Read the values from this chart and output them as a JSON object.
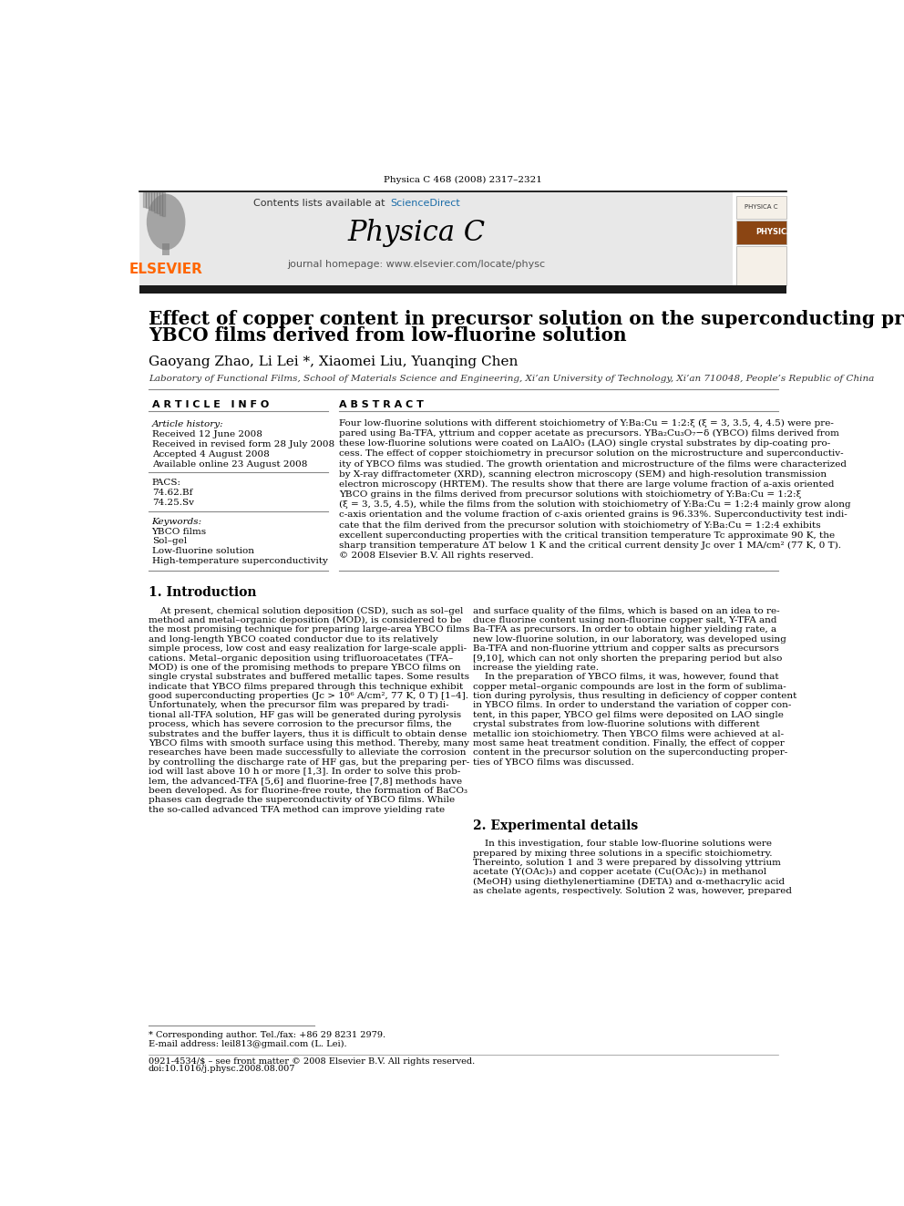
{
  "journal_info": "Physica C 468 (2008) 2317–2321",
  "contents_text": "Contents lists available at ",
  "sciencedirect_text": "ScienceDirect",
  "journal_name": "Physica C",
  "journal_homepage": "journal homepage: www.elsevier.com/locate/physc",
  "elsevier_color": "#FF6600",
  "sciencedirect_color": "#1a6ca8",
  "header_bg": "#e8e8e8",
  "black_bar_color": "#1a1a1a",
  "title_line1": "Effect of copper content in precursor solution on the superconducting properties of",
  "title_line2": "YBCO films derived from low-fluorine solution",
  "authors": "Gaoyang Zhao, Li Lei *, Xiaomei Liu, Yuanqing Chen",
  "affiliation": "Laboratory of Functional Films, School of Materials Science and Engineering, Xi’an University of Technology, Xi’an 710048, People’s Republic of China",
  "article_info_header": "A R T I C L E   I N F O",
  "abstract_header": "A B S T R A C T",
  "article_history_label": "Article history:",
  "received": "Received 12 June 2008",
  "received_revised": "Received in revised form 28 July 2008",
  "accepted": "Accepted 4 August 2008",
  "available": "Available online 23 August 2008",
  "pacs_label": "PACS:",
  "pacs1": "74.62.Bf",
  "pacs2": "74.25.Sv",
  "keywords_label": "Keywords:",
  "kw1": "YBCO films",
  "kw2": "Sol–gel",
  "kw3": "Low-fluorine solution",
  "kw4": "High-temperature superconductivity",
  "abstract_lines": [
    "Four low-fluorine solutions with different stoichiometry of Y:Ba:Cu = 1:2:ξ (ξ = 3, 3.5, 4, 4.5) were pre-",
    "pared using Ba-TFA, yttrium and copper acetate as precursors. YBa₂Cu₃O₇−δ (YBCO) films derived from",
    "these low-fluorine solutions were coated on LaAlO₃ (LAO) single crystal substrates by dip-coating pro-",
    "cess. The effect of copper stoichiometry in precursor solution on the microstructure and superconductiv-",
    "ity of YBCO films was studied. The growth orientation and microstructure of the films were characterized",
    "by X-ray diffractometer (XRD), scanning electron microscopy (SEM) and high-resolution transmission",
    "electron microscopy (HRTEM). The results show that there are large volume fraction of a-axis oriented",
    "YBCO grains in the films derived from precursor solutions with stoichiometry of Y:Ba:Cu = 1:2:ξ",
    "(ξ = 3, 3.5, 4.5), while the films from the solution with stoichiometry of Y:Ba:Cu = 1:2:4 mainly grow along",
    "c-axis orientation and the volume fraction of c-axis oriented grains is 96.33%. Superconductivity test indi-",
    "cate that the film derived from the precursor solution with stoichiometry of Y:Ba:Cu = 1:2:4 exhibits",
    "excellent superconducting properties with the critical transition temperature Tc approximate 90 K, the",
    "sharp transition temperature ΔT below 1 K and the critical current density Jc over 1 MA/cm² (77 K, 0 T).",
    "© 2008 Elsevier B.V. All rights reserved."
  ],
  "section1_title": "1. Introduction",
  "intro_col1_lines": [
    "    At present, chemical solution deposition (CSD), such as sol–gel",
    "method and metal–organic deposition (MOD), is considered to be",
    "the most promising technique for preparing large-area YBCO films",
    "and long-length YBCO coated conductor due to its relatively",
    "simple process, low cost and easy realization for large-scale appli-",
    "cations. Metal–organic deposition using trifluoroacetates (TFA–",
    "MOD) is one of the promising methods to prepare YBCO films on",
    "single crystal substrates and buffered metallic tapes. Some results",
    "indicate that YBCO films prepared through this technique exhibit",
    "good superconducting properties (Jc > 10⁶ A/cm², 77 K, 0 T) [1–4].",
    "Unfortunately, when the precursor film was prepared by tradi-",
    "tional all-TFA solution, HF gas will be generated during pyrolysis",
    "process, which has severe corrosion to the precursor films, the",
    "substrates and the buffer layers, thus it is difficult to obtain dense",
    "YBCO films with smooth surface using this method. Thereby, many",
    "researches have been made successfully to alleviate the corrosion",
    "by controlling the discharge rate of HF gas, but the preparing per-",
    "iod will last above 10 h or more [1,3]. In order to solve this prob-",
    "lem, the advanced-TFA [5,6] and fluorine-free [7,8] methods have",
    "been developed. As for fluorine-free route, the formation of BaCO₃",
    "phases can degrade the superconductivity of YBCO films. While",
    "the so-called advanced TFA method can improve yielding rate"
  ],
  "intro_col2_lines": [
    "and surface quality of the films, which is based on an idea to re-",
    "duce fluorine content using non-fluorine copper salt, Y-TFA and",
    "Ba-TFA as precursors. In order to obtain higher yielding rate, a",
    "new low-fluorine solution, in our laboratory, was developed using",
    "Ba-TFA and non-fluorine yttrium and copper salts as precursors",
    "[9,10], which can not only shorten the preparing period but also",
    "increase the yielding rate.",
    "    In the preparation of YBCO films, it was, however, found that",
    "copper metal–organic compounds are lost in the form of sublima-",
    "tion during pyrolysis, thus resulting in deficiency of copper content",
    "in YBCO films. In order to understand the variation of copper con-",
    "tent, in this paper, YBCO gel films were deposited on LAO single",
    "crystal substrates from low-fluorine solutions with different",
    "metallic ion stoichiometry. Then YBCO films were achieved at al-",
    "most same heat treatment condition. Finally, the effect of copper",
    "content in the precursor solution on the superconducting proper-",
    "ties of YBCO films was discussed."
  ],
  "section2_title": "2. Experimental details",
  "exp_col2_lines": [
    "    In this investigation, four stable low-fluorine solutions were",
    "prepared by mixing three solutions in a specific stoichiometry.",
    "Thereinto, solution 1 and 3 were prepared by dissolving yttrium",
    "acetate (Y(OAc)₃) and copper acetate (Cu(OAc)₂) in methanol",
    "(MeOH) using diethylenertiamine (DETA) and α-methacrylic acid",
    "as chelate agents, respectively. Solution 2 was, however, prepared"
  ],
  "footnote_star": "* Corresponding author. Tel./fax: +86 29 8231 2979.",
  "footnote_email": "E-mail address: leil813@gmail.com (L. Lei).",
  "footer1": "0921-4534/$ – see front matter © 2008 Elsevier B.V. All rights reserved.",
  "footer2": "doi:10.1016/j.physc.2008.08.007",
  "bg_color": "#ffffff",
  "text_color": "#000000"
}
